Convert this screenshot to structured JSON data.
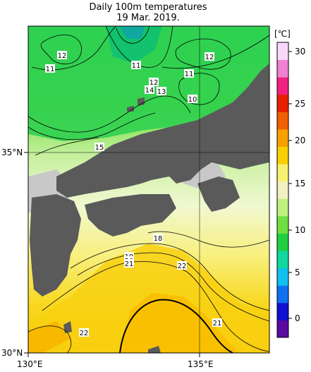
{
  "title": "Daily 100m temperatures",
  "date": "19 Mar. 2019.",
  "axes": {
    "lat_ticks": [
      "35°N",
      "30°N"
    ],
    "lon_ticks": [
      "130°E",
      "135°E"
    ]
  },
  "contour_labels": [
    {
      "text": "12",
      "id": "c12a"
    },
    {
      "text": "11",
      "id": "c11a"
    },
    {
      "text": "11",
      "id": "c11b"
    },
    {
      "text": "12",
      "id": "c12b"
    },
    {
      "text": "11",
      "id": "c11c"
    },
    {
      "text": "12",
      "id": "c12c"
    },
    {
      "text": "14",
      "id": "c14"
    },
    {
      "text": "13",
      "id": "c13"
    },
    {
      "text": "10",
      "id": "c10"
    },
    {
      "text": "15",
      "id": "c15"
    },
    {
      "text": "18",
      "id": "c18"
    },
    {
      "text": "19",
      "id": "c19"
    },
    {
      "text": "20",
      "id": "c20"
    },
    {
      "text": "21",
      "id": "c21a"
    },
    {
      "text": "22",
      "id": "c22a"
    },
    {
      "text": "21",
      "id": "c21b"
    },
    {
      "text": "22",
      "id": "c22b"
    }
  ],
  "colorbar": {
    "unit": "[℃]",
    "ticks": [
      "30",
      "25",
      "20",
      "15",
      "10",
      "5",
      "0"
    ],
    "colors": [
      "#5a0aa0",
      "#1010d0",
      "#1070f0",
      "#10c0f0",
      "#10d8a0",
      "#20d040",
      "#70e040",
      "#c0f080",
      "#f0f0c0",
      "#f8f070",
      "#f8d000",
      "#f8a000",
      "#f06000",
      "#e82000",
      "#f02080",
      "#f080d0",
      "#f8d8f8"
    ]
  },
  "colors": {
    "land": "#5a5a5a",
    "no_data": "#c8c8c8"
  }
}
